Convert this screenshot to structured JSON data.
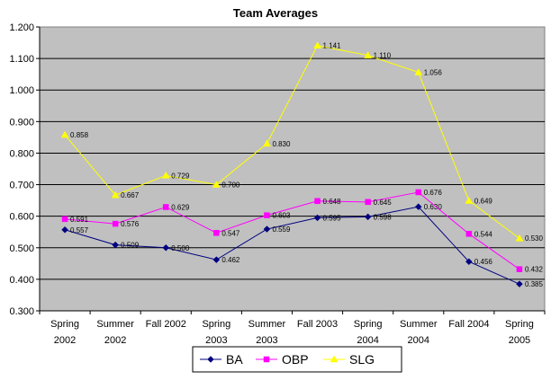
{
  "chart_data": {
    "type": "line",
    "title": "Team Averages",
    "xlabel": "",
    "ylabel": "",
    "ylim": [
      0.3,
      1.2
    ],
    "y_step": 0.1,
    "y_tick_labels": [
      "0.300",
      "0.400",
      "0.500",
      "0.600",
      "0.700",
      "0.800",
      "0.900",
      "1.000",
      "1.100",
      "1.200"
    ],
    "grid": "horizontal",
    "plot_background": "#c0c0c0",
    "legend_position": "bottom",
    "categories": [
      [
        "Spring",
        "2002"
      ],
      [
        "Summer",
        "2002"
      ],
      [
        "Fall 2002"
      ],
      [
        "Spring",
        "2003"
      ],
      [
        "Summer",
        "2003"
      ],
      [
        "Fall 2003"
      ],
      [
        "Spring",
        "2004"
      ],
      [
        "Summer",
        "2004"
      ],
      [
        "Fall 2004"
      ],
      [
        "Spring",
        "2005"
      ]
    ],
    "series": [
      {
        "name": "BA",
        "color": "#000080",
        "marker": "diamond",
        "values": [
          0.557,
          0.509,
          0.5,
          0.462,
          0.559,
          0.595,
          0.598,
          0.63,
          0.456,
          0.385
        ],
        "labels": [
          "0.557",
          "0.509",
          "0.500",
          "0.462",
          "0.559",
          "0.595",
          "0.598",
          "0.630",
          "0.456",
          "0.385"
        ]
      },
      {
        "name": "OBP",
        "color": "#ff00ff",
        "marker": "square",
        "values": [
          0.591,
          0.576,
          0.629,
          0.547,
          0.603,
          0.648,
          0.645,
          0.676,
          0.544,
          0.432
        ],
        "labels": [
          "0.591",
          "0.576",
          "0.629",
          "0.547",
          "0.603",
          "0.648",
          "0.645",
          "0.676",
          "0.544",
          "0.432"
        ]
      },
      {
        "name": "SLG",
        "color": "#ffff00",
        "marker": "triangle",
        "values": [
          0.858,
          0.667,
          0.729,
          0.7,
          0.83,
          1.141,
          1.11,
          1.056,
          0.649,
          0.53
        ],
        "labels": [
          "0.858",
          "0.667",
          "0.729",
          "0.700",
          "0.830",
          "1.141",
          "1.110",
          "1.056",
          "0.649",
          "0.530"
        ]
      }
    ]
  }
}
